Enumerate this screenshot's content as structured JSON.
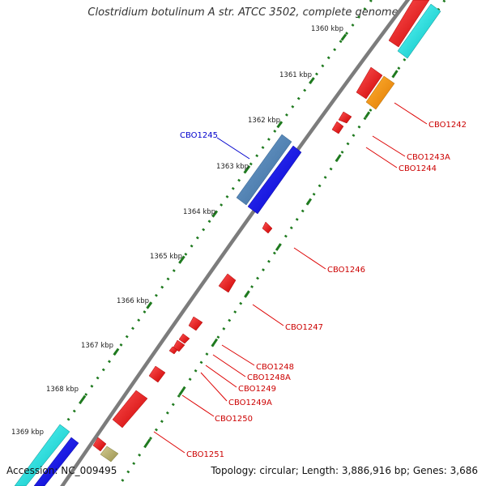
{
  "title": "Clostridium botulinum A str. ATCC 3502, complete genome",
  "footer": {
    "accession": "Accession: NC_009495",
    "summary": "Topology: circular; Length: 3,886,916 bp; Genes: 3,686"
  },
  "colors": {
    "backbone": "#8a8a8a",
    "tick": "#1f7a1f",
    "gene_red": "#ee1111",
    "gene_blue": "#1010ee",
    "gene_steel": "#4a7fb0",
    "gene_cyan": "#11dddd",
    "gene_orange": "#ff9900",
    "gene_olive": "#b8b070",
    "leader_red": "#dd0000",
    "leader_blue": "#0000cc"
  },
  "ruler": {
    "unit": "kbp",
    "labels": [
      "1360 kbp",
      "1361 kbp",
      "1362 kbp",
      "1363 kbp",
      "1364 kbp",
      "1365 kbp",
      "1366 kbp",
      "1367 kbp",
      "1368 kbp",
      "1369 kbp"
    ]
  },
  "genes": [
    {
      "label": "CBO1242",
      "strand": "-",
      "color": "red"
    },
    {
      "label": "CBO1243A",
      "strand": "-",
      "color": "red"
    },
    {
      "label": "CBO1244",
      "strand": "-",
      "color": "red"
    },
    {
      "label": "CBO1245",
      "strand": "+",
      "color": "steel",
      "highlight": true
    },
    {
      "label": "CBO1246",
      "strand": "-",
      "color": "red"
    },
    {
      "label": "CBO1247",
      "strand": "-",
      "color": "red"
    },
    {
      "label": "CBO1248",
      "strand": "-",
      "color": "red"
    },
    {
      "label": "CBO1248A",
      "strand": "-",
      "color": "red"
    },
    {
      "label": "CBO1249",
      "strand": "-",
      "color": "red"
    },
    {
      "label": "CBO1249A",
      "strand": "-",
      "color": "red"
    },
    {
      "label": "CBO1250",
      "strand": "-",
      "color": "red"
    },
    {
      "label": "CBO1251",
      "strand": "-",
      "color": "red"
    }
  ]
}
